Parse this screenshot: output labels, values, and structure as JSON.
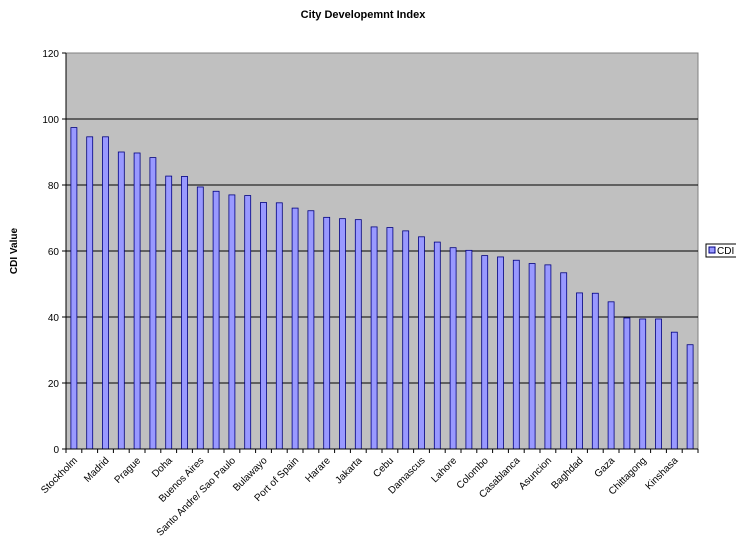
{
  "chart_data": {
    "type": "bar",
    "title": "City Developemnt Index",
    "xlabel": "",
    "ylabel": "CDI Value",
    "ylim": [
      0,
      120
    ],
    "yticks": [
      0,
      20,
      40,
      60,
      80,
      100,
      120
    ],
    "grid": true,
    "legend_position": "right",
    "colors": {
      "plot_background": "#c0c0c0",
      "bar_fill": "#9999ff",
      "bar_stroke": "#000080",
      "gridline": "#000000"
    },
    "categories": [
      "Stockholm",
      "",
      "Madrid",
      "",
      "Prague",
      "",
      "Doha",
      "",
      "Buenos Aires",
      "",
      "Santo Andre/ Sao Paulo",
      "",
      "Bulawayo",
      "",
      "Port of Spain",
      "",
      "Harare",
      "",
      "Jakarta",
      "",
      "Cebu",
      "",
      "Damascus",
      "",
      "Lahore",
      "",
      "Colombo",
      "",
      "Casablanca",
      "",
      "Asuncion",
      "",
      "Baghdad",
      "",
      "Gaza",
      "",
      "Chittagong",
      "",
      "Kinshasa",
      ""
    ],
    "series": [
      {
        "name": "CDI",
        "values": [
          97.4,
          94.6,
          94.6,
          90.0,
          89.7,
          88.3,
          82.7,
          82.6,
          79.4,
          78.1,
          77.0,
          76.8,
          74.7,
          74.6,
          73.0,
          72.2,
          70.2,
          69.8,
          69.5,
          67.3,
          67.1,
          66.1,
          64.3,
          62.7,
          61.0,
          60.2,
          58.6,
          58.2,
          57.2,
          56.2,
          55.8,
          53.4,
          47.3,
          47.2,
          44.6,
          39.7,
          39.4,
          39.4,
          35.4,
          31.6
        ]
      }
    ]
  }
}
